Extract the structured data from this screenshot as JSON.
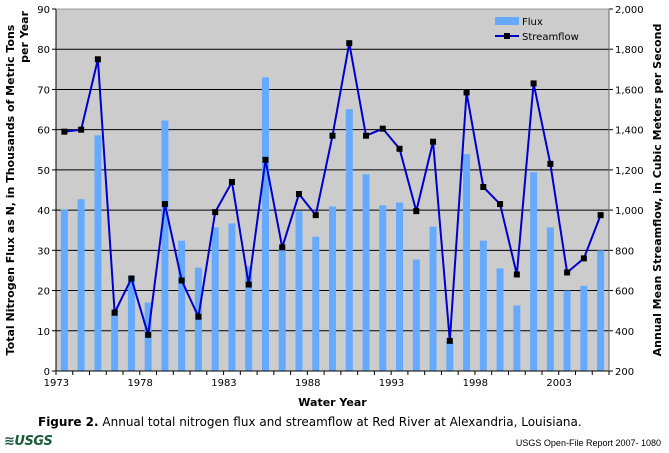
{
  "chart_data": {
    "type": "bar+line",
    "title": "",
    "xlabel": "Water Year",
    "ylabel": "Total Nitrogen Flux as N, in Thousands of Metric Tons per Year",
    "ylabel_lines": [
      "Total Nitrogen Flux as N, in Thousands of Metric Tons",
      "per Year"
    ],
    "y2label": "Annual Mean Streamflow, in Cubic Meters per Second",
    "ylim": [
      0,
      90
    ],
    "y2lim": [
      200,
      2000
    ],
    "yticks": [
      "0",
      "10",
      "20",
      "30",
      "40",
      "50",
      "60",
      "70",
      "80",
      "90"
    ],
    "y2ticks": [
      "200",
      "400",
      "600",
      "800",
      "1,000",
      "1,200",
      "1,400",
      "1,600",
      "1,800",
      "2,000"
    ],
    "xticks": [
      "1973",
      "1978",
      "1983",
      "1988",
      "1993",
      "1998",
      "2003"
    ],
    "grid": true,
    "legend_position": "top-right",
    "x": [
      1973,
      1974,
      1975,
      1976,
      1977,
      1978,
      1979,
      1980,
      1981,
      1982,
      1983,
      1984,
      1985,
      1986,
      1987,
      1988,
      1989,
      1990,
      1991,
      1992,
      1993,
      1994,
      1995,
      1996,
      1997,
      1998,
      1999,
      2000,
      2001,
      2002,
      2003,
      2004,
      2005
    ],
    "series": [
      {
        "name": "Flux",
        "type": "bar",
        "axis": "left",
        "color": "#66aaff",
        "values": [
          40.2,
          42.7,
          58.6,
          15.4,
          23.7,
          17.0,
          62.3,
          32.4,
          25.7,
          35.7,
          36.7,
          26,
          73.0,
          31,
          39.7,
          33.4,
          40.9,
          65.1,
          48.9,
          41.2,
          41.9,
          27.7,
          35.9,
          7.3,
          53.9,
          32.4,
          25.5,
          16.3,
          49.4,
          35.7,
          20.0,
          21.2,
          30.0
        ]
      },
      {
        "name": "Streamflow",
        "type": "line",
        "axis": "right",
        "color": "#0000cc",
        "marker_color": "#000000",
        "values": [
          1390,
          1400,
          1750,
          490,
          660,
          380,
          1030,
          650,
          470,
          990,
          1140,
          630,
          1250,
          815,
          1080,
          975,
          1370,
          1830,
          1370,
          1405,
          1305,
          995,
          1340,
          350,
          1585,
          1115,
          1030,
          680,
          1630,
          1230,
          690,
          760,
          975
        ]
      }
    ]
  },
  "caption": {
    "label": "Figure 2.",
    "text": " Annual total nitrogen flux and streamflow at Red River at Alexandria, Louisiana."
  },
  "footer": {
    "logo": "USGS",
    "report": "USGS Open-File Report 2007- 1080"
  }
}
